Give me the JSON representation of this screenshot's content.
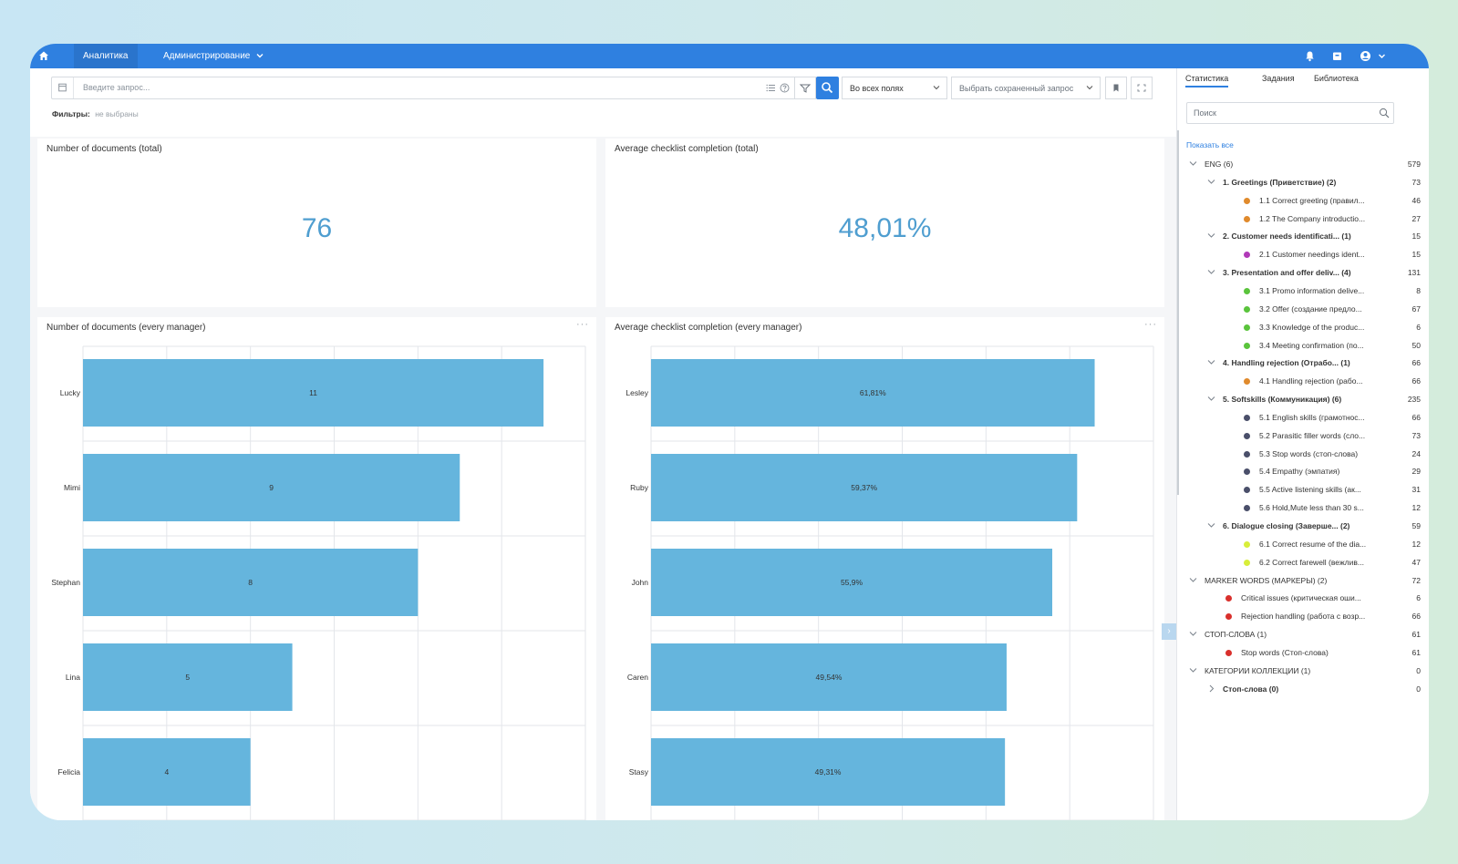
{
  "topbar": {
    "nav": [
      {
        "label": "Аналитика"
      },
      {
        "label": "Администрирование"
      }
    ]
  },
  "search": {
    "placeholder": "Введите запрос...",
    "field_select": "Во всех полях",
    "saved_select": "Выбрать сохраненный запрос"
  },
  "filters": {
    "label": "Фильтры:",
    "value": "не выбраны"
  },
  "cards": {
    "docs_total": {
      "title": "Number of documents (total)",
      "value": "76"
    },
    "completion_total": {
      "title": "Average checklist completion (total)",
      "value": "48,01%"
    },
    "docs_manager": {
      "title": "Number of documents (every manager)",
      "menu": "···"
    },
    "completion_manager": {
      "title": "Average checklist completion (every manager)",
      "menu": "···"
    }
  },
  "chart_data": [
    {
      "type": "bar",
      "orientation": "horizontal",
      "title": "Number of documents (every manager)",
      "categories": [
        "Lucky",
        "Mimi",
        "Stephan",
        "Lina",
        "Felicia"
      ],
      "values": [
        11,
        9,
        8,
        5,
        4
      ],
      "labels": [
        "11",
        "9",
        "8",
        "5",
        "4"
      ],
      "xlim": [
        0,
        12
      ],
      "grid": true,
      "color": "#65b5dd"
    },
    {
      "type": "bar",
      "orientation": "horizontal",
      "title": "Average checklist completion (every manager)",
      "categories": [
        "Lesley",
        "Ruby",
        "John",
        "Caren",
        "Stasy"
      ],
      "values": [
        61.81,
        59.37,
        55.9,
        49.54,
        49.31
      ],
      "labels": [
        "61,81%",
        "59,37%",
        "55,9%",
        "49,54%",
        "49,31%"
      ],
      "xlim": [
        0,
        70
      ],
      "grid": true,
      "color": "#65b5dd"
    }
  ],
  "right_panel": {
    "tabs": [
      {
        "label": "Статистика",
        "active": true
      },
      {
        "label": "Задания",
        "active": false
      },
      {
        "label": "Библиотека",
        "active": false
      }
    ],
    "search_placeholder": "Поиск",
    "show_all": "Показать все",
    "tree": [
      {
        "level": 0,
        "label": "ENG (6)",
        "count": "579",
        "expanded": true
      },
      {
        "level": 1,
        "label": "1. Greetings (Приветствие) (2)",
        "count": "73",
        "expanded": true,
        "bold": true
      },
      {
        "level": 2,
        "label": "1.1 Correct greeting (правил...",
        "count": "46",
        "color": "#e08a2c"
      },
      {
        "level": 2,
        "label": "1.2 The Company introductio...",
        "count": "27",
        "color": "#e08a2c"
      },
      {
        "level": 1,
        "label": "2. Customer needs identificati... (1)",
        "count": "15",
        "expanded": true,
        "bold": true
      },
      {
        "level": 2,
        "label": "2.1 Customer needings ident...",
        "count": "15",
        "color": "#b13ab8"
      },
      {
        "level": 1,
        "label": "3. Presentation and offer deliv... (4)",
        "count": "131",
        "expanded": true,
        "bold": true
      },
      {
        "level": 2,
        "label": "3.1 Promo information delive...",
        "count": "8",
        "color": "#5ac43c"
      },
      {
        "level": 2,
        "label": "3.2 Offer (создание предло...",
        "count": "67",
        "color": "#5ac43c"
      },
      {
        "level": 2,
        "label": "3.3 Knowledge of the produc...",
        "count": "6",
        "color": "#5ac43c"
      },
      {
        "level": 2,
        "label": "3.4 Meeting confirmation (по...",
        "count": "50",
        "color": "#5ac43c"
      },
      {
        "level": 1,
        "label": "4. Handling rejection (Отрабо... (1)",
        "count": "66",
        "expanded": true,
        "bold": true
      },
      {
        "level": 2,
        "label": "4.1 Handling rejection (рабо...",
        "count": "66",
        "color": "#e08a2c"
      },
      {
        "level": 1,
        "label": "5. Softskills (Коммуникация) (6)",
        "count": "235",
        "expanded": true,
        "bold": true
      },
      {
        "level": 2,
        "label": "5.1 English skills (грамотнос...",
        "count": "66",
        "color": "#4a4f6a"
      },
      {
        "level": 2,
        "label": "5.2 Parasitic filler words (сло...",
        "count": "73",
        "color": "#4a4f6a"
      },
      {
        "level": 2,
        "label": "5.3 Stop words (стоп-слова)",
        "count": "24",
        "color": "#4a4f6a"
      },
      {
        "level": 2,
        "label": "5.4 Empathy (эмпатия)",
        "count": "29",
        "color": "#4a4f6a"
      },
      {
        "level": 2,
        "label": "5.5 Active listening skills (ак...",
        "count": "31",
        "color": "#4a4f6a"
      },
      {
        "level": 2,
        "label": "5.6 Hold,Mute less than 30 s...",
        "count": "12",
        "color": "#4a4f6a"
      },
      {
        "level": 1,
        "label": "6. Dialogue closing (Заверше... (2)",
        "count": "59",
        "expanded": true,
        "bold": true
      },
      {
        "level": 2,
        "label": "6.1 Correct resume of the dia...",
        "count": "12",
        "color": "#d8ee3a"
      },
      {
        "level": 2,
        "label": "6.2 Correct farewell (вежлив...",
        "count": "47",
        "color": "#d8ee3a"
      },
      {
        "level": 0,
        "label": "MARKER WORDS (МАРКЕРЫ) (2)",
        "count": "72",
        "expanded": true
      },
      {
        "level": 1,
        "label": "Critical issues (критическая оши...",
        "count": "6",
        "color": "#d9302c"
      },
      {
        "level": 1,
        "label": "Rejection handling (работа с возр...",
        "count": "66",
        "color": "#d9302c"
      },
      {
        "level": 0,
        "label": "СТОП-СЛОВА (1)",
        "count": "61",
        "expanded": true
      },
      {
        "level": 1,
        "label": "Stop words (Стоп-слова)",
        "count": "61",
        "color": "#d9302c"
      },
      {
        "level": 0,
        "label": "КАТЕГОРИИ КОЛЛЕКЦИИ (1)",
        "count": "0",
        "expanded": true
      },
      {
        "level": 1,
        "label": "Стоп-слова (0)",
        "count": "0",
        "expanded": false,
        "bold": true
      }
    ]
  },
  "colors": {
    "accent": "#2f80e0",
    "bar": "#65b5dd",
    "value": "#4f9ed0"
  }
}
